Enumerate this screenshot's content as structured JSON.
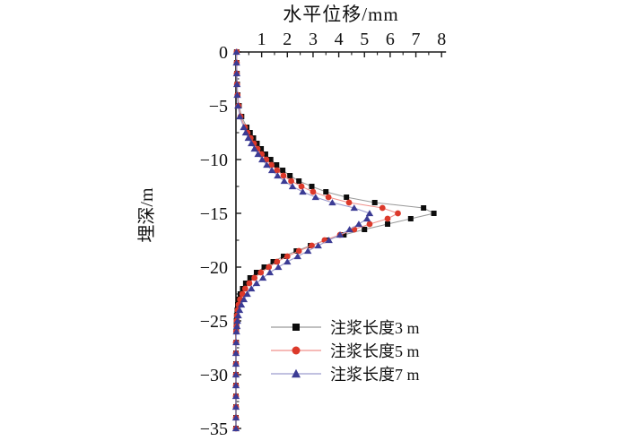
{
  "figure": {
    "background": "#ffffff",
    "axis_color": "#1a1a1a",
    "text_color": "#111111"
  },
  "chart_data": {
    "type": "line",
    "title": "",
    "xlabel": "水平位移/mm",
    "ylabel": "埋深/m",
    "xlim": [
      0,
      8
    ],
    "ylim": [
      -35,
      0
    ],
    "x_axis_position": "top",
    "y_axis_position": "left",
    "grid": false,
    "x_major_ticks": [
      1,
      2,
      3,
      4,
      5,
      6,
      7,
      8
    ],
    "x_minor_step": 0.5,
    "y_major_ticks": [
      0,
      -5,
      -10,
      -15,
      -20,
      -25,
      -30,
      -35
    ],
    "y_minor_step": 2.5,
    "legend_position": "inside-lower-middle",
    "depths": [
      0,
      -1,
      -2,
      -3,
      -4,
      -5,
      -6,
      -7,
      -7.5,
      -8,
      -8.5,
      -9,
      -9.5,
      -10,
      -10.5,
      -11,
      -11.5,
      -12,
      -12.5,
      -13,
      -13.5,
      -14,
      -14.5,
      -15,
      -15.5,
      -16,
      -16.5,
      -17,
      -17.5,
      -18,
      -18.5,
      -19,
      -19.5,
      -20,
      -20.5,
      -21,
      -21.5,
      -22,
      -22.5,
      -23,
      -23.5,
      -24,
      -24.5,
      -25,
      -25.5,
      -26,
      -27,
      -28,
      -29,
      -30,
      -31,
      -32,
      -33,
      -34,
      -35
    ],
    "series": [
      {
        "name": "注浆长度3 m",
        "marker": "square",
        "marker_color": "#0d0d0d",
        "line_color": "#9a9a9a",
        "peak": {
          "displacement_mm": 7.7,
          "depth_m": -14.8
        },
        "values": [
          0.03,
          0.03,
          0.04,
          0.05,
          0.07,
          0.12,
          0.22,
          0.42,
          0.55,
          0.68,
          0.82,
          0.98,
          1.15,
          1.35,
          1.58,
          1.82,
          2.1,
          2.45,
          2.95,
          3.5,
          4.3,
          5.4,
          7.3,
          7.7,
          6.8,
          5.9,
          5.0,
          4.2,
          3.5,
          2.9,
          2.35,
          1.85,
          1.45,
          1.1,
          0.8,
          0.55,
          0.38,
          0.26,
          0.17,
          0.11,
          0.07,
          0.05,
          0.03,
          0.02,
          0.02,
          0.01,
          0.01,
          0,
          0,
          0,
          0,
          0,
          0,
          0,
          0
        ]
      },
      {
        "name": "注浆长度5 m",
        "marker": "circle",
        "marker_color": "#dc392a",
        "line_color": "#f0918c",
        "peak": {
          "displacement_mm": 6.3,
          "depth_m": -15.0
        },
        "values": [
          0.03,
          0.03,
          0.03,
          0.04,
          0.06,
          0.1,
          0.18,
          0.35,
          0.45,
          0.57,
          0.7,
          0.84,
          1.0,
          1.18,
          1.38,
          1.6,
          1.85,
          2.15,
          2.55,
          3.0,
          3.6,
          4.4,
          5.7,
          6.3,
          5.9,
          5.2,
          4.6,
          4.05,
          3.45,
          2.95,
          2.45,
          2.0,
          1.6,
          1.28,
          0.97,
          0.72,
          0.52,
          0.36,
          0.25,
          0.16,
          0.1,
          0.07,
          0.04,
          0.03,
          0.02,
          0.01,
          0,
          0,
          0,
          0,
          0,
          0,
          0,
          0,
          0
        ]
      },
      {
        "name": "注浆长度7 m",
        "marker": "triangle",
        "marker_color": "#3b3b94",
        "line_color": "#9c9cce",
        "peak": {
          "displacement_mm": 5.2,
          "depth_m": -15.1
        },
        "values": [
          0.02,
          0.02,
          0.03,
          0.04,
          0.05,
          0.08,
          0.15,
          0.3,
          0.38,
          0.48,
          0.6,
          0.72,
          0.86,
          1.02,
          1.2,
          1.4,
          1.62,
          1.88,
          2.2,
          2.6,
          3.1,
          3.75,
          4.6,
          5.2,
          5.1,
          4.78,
          4.42,
          4.05,
          3.62,
          3.2,
          2.8,
          2.4,
          2.0,
          1.65,
          1.32,
          1.05,
          0.8,
          0.6,
          0.44,
          0.31,
          0.21,
          0.14,
          0.09,
          0.06,
          0.04,
          0.02,
          0.01,
          0,
          0,
          0,
          0,
          0,
          0,
          0,
          0
        ]
      }
    ]
  }
}
